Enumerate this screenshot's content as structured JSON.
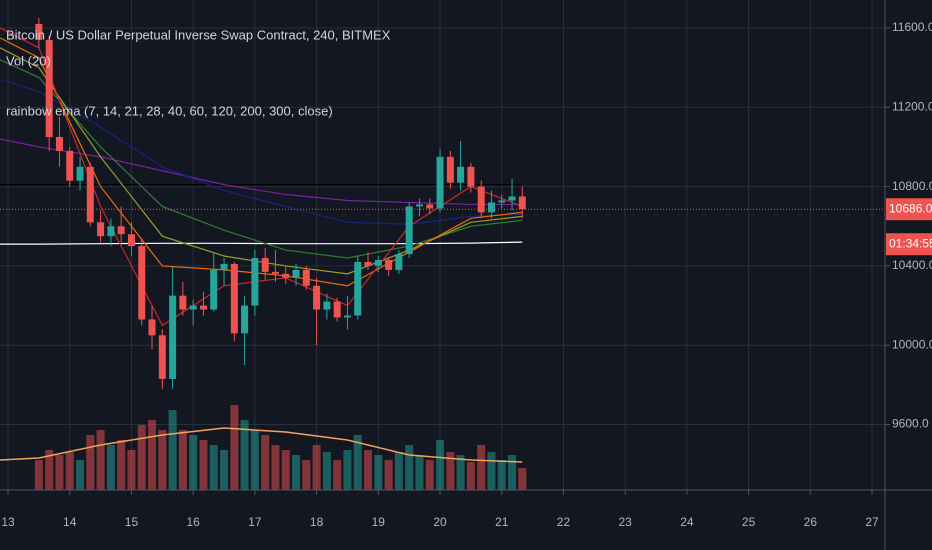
{
  "chart_data": {
    "type": "candlestick",
    "title": "Bitcoin / US Dollar Perpetual Inverse Swap Contract, 240, BITMEX",
    "indicators": [
      "Vol (20)",
      "rainbow ema (7, 14, 21, 28, 40, 60, 120, 200, 300, close)"
    ],
    "x": [
      13.5,
      13.667,
      13.833,
      14,
      14.167,
      14.333,
      14.5,
      14.667,
      14.833,
      15,
      15.167,
      15.333,
      15.5,
      15.667,
      15.833,
      16,
      16.167,
      16.333,
      16.5,
      16.667,
      16.833,
      17,
      17.167,
      17.333,
      17.5,
      17.667,
      17.833,
      18,
      18.167,
      18.333,
      18.5,
      18.667,
      18.833,
      19,
      19.167,
      19.333,
      19.5,
      19.667,
      19.833,
      20,
      20.167,
      20.333,
      20.5,
      20.667,
      20.833,
      21,
      21.167,
      21.333
    ],
    "open": [
      11620,
      11540,
      11050,
      10980,
      10830,
      10900,
      10620,
      10550,
      10600,
      10560,
      10500,
      10130,
      10050,
      9830,
      10250,
      10180,
      10200,
      10180,
      10380,
      10410,
      10060,
      10200,
      10440,
      10370,
      10360,
      10340,
      10380,
      10300,
      10180,
      10220,
      10140,
      10150,
      10420,
      10400,
      10430,
      10380,
      10460,
      10700,
      10710,
      10690,
      10950,
      10820,
      10900,
      10800,
      10670,
      10720,
      10730,
      10750
    ],
    "high": [
      11650,
      11560,
      11150,
      11000,
      10950,
      10920,
      10680,
      10640,
      10700,
      10620,
      10540,
      10200,
      10080,
      10400,
      10320,
      10230,
      10270,
      10470,
      10440,
      10420,
      10250,
      10480,
      10490,
      10480,
      10400,
      10410,
      10400,
      10340,
      10260,
      10240,
      10250,
      10450,
      10470,
      10450,
      10440,
      10480,
      10720,
      10740,
      10740,
      10990,
      10980,
      11030,
      10920,
      10830,
      10780,
      10760,
      10840,
      10800
    ],
    "low": [
      11500,
      10980,
      10900,
      10800,
      10780,
      10600,
      10520,
      10500,
      10520,
      10450,
      10100,
      9980,
      9780,
      9780,
      10150,
      10100,
      10150,
      10170,
      10300,
      10020,
      9900,
      10150,
      10330,
      10320,
      10310,
      10300,
      10280,
      10000,
      10130,
      10120,
      10080,
      10130,
      10380,
      10370,
      10350,
      10360,
      10440,
      10650,
      10660,
      10670,
      10790,
      10780,
      10770,
      10640,
      10640,
      10690,
      10680,
      10640
    ],
    "close": [
      11540,
      11050,
      10980,
      10830,
      10900,
      10620,
      10550,
      10600,
      10560,
      10500,
      10130,
      10050,
      9830,
      10250,
      10180,
      10200,
      10180,
      10380,
      10410,
      10060,
      10200,
      10440,
      10370,
      10360,
      10340,
      10380,
      10300,
      10180,
      10220,
      10140,
      10150,
      10420,
      10400,
      10430,
      10380,
      10460,
      10700,
      10710,
      10690,
      10950,
      10820,
      10900,
      10800,
      10670,
      10720,
      10730,
      10750,
      10686
    ],
    "volume": [
      30,
      40,
      35,
      38,
      30,
      55,
      60,
      45,
      50,
      40,
      65,
      70,
      60,
      80,
      60,
      55,
      50,
      45,
      40,
      85,
      70,
      60,
      55,
      45,
      40,
      35,
      30,
      45,
      38,
      30,
      40,
      55,
      40,
      35,
      30,
      38,
      45,
      35,
      30,
      50,
      38,
      35,
      28,
      45,
      38,
      30,
      35,
      22
    ],
    "volume_lim": [
      0,
      100
    ],
    "volume_ma": {
      "color": "#f0a35b",
      "values": [
        30,
        32,
        45,
        55,
        62,
        58,
        50,
        35,
        30,
        28
      ]
    },
    "up_color": "#26a69a",
    "down_color": "#ef5350",
    "overlay_x": [
      12.87,
      13.5,
      14.5,
      15.5,
      16.5,
      17.5,
      18.5,
      19.5,
      20.5,
      21.333
    ],
    "overlays": [
      {
        "color": "#ffffff",
        "values": [
          10510,
          10510,
          10512,
          10514,
          10514,
          10512,
          10512,
          10512,
          10515,
          10520
        ]
      },
      {
        "color": "#000000",
        "values": [
          10810,
          10810,
          10810,
          10810,
          10810,
          10810,
          10810,
          10810,
          10810,
          10810
        ]
      },
      {
        "color": "#7b1fa2",
        "values": [
          11040,
          11000,
          10950,
          10880,
          10810,
          10760,
          10730,
          10720,
          10710,
          10710
        ]
      },
      {
        "color": "#1a237e",
        "values": [
          11340,
          11280,
          11100,
          10900,
          10780,
          10700,
          10620,
          10610,
          10650,
          10660
        ]
      },
      {
        "color": "#2e7d32",
        "values": [
          11440,
          11350,
          11000,
          10700,
          10580,
          10480,
          10440,
          10500,
          10600,
          10630
        ]
      },
      {
        "color": "#9e9d24",
        "values": [
          11500,
          11400,
          10950,
          10550,
          10450,
          10400,
          10360,
          10480,
          10620,
          10650
        ]
      },
      {
        "color": "#ef6c00",
        "values": [
          11550,
          11450,
          10800,
          10400,
          10380,
          10350,
          10300,
          10470,
          10640,
          10670
        ]
      },
      {
        "color": "#c62828",
        "values": [
          11600,
          11500,
          10700,
          10100,
          10300,
          10340,
          10200,
          10600,
          10800,
          10700
        ]
      }
    ],
    "last_price": {
      "value": 10686,
      "label": "10686.0"
    },
    "countdown": "01:34:55",
    "xlim": [
      12.87,
      27.21
    ],
    "ylim": [
      9270,
      11741
    ],
    "xticks": [
      13,
      14,
      15,
      16,
      17,
      18,
      19,
      20,
      21,
      22,
      23,
      24,
      25,
      26,
      27
    ],
    "yticks": [
      {
        "value": 9600,
        "label": "9600.0"
      },
      {
        "value": 10000,
        "label": "10000.0"
      },
      {
        "value": 10400,
        "label": "10400.0"
      },
      {
        "value": 10800,
        "label": "10800.0"
      },
      {
        "value": 11200,
        "label": "11200.0"
      },
      {
        "value": 11600,
        "label": "11600.0"
      }
    ],
    "grid": true
  }
}
